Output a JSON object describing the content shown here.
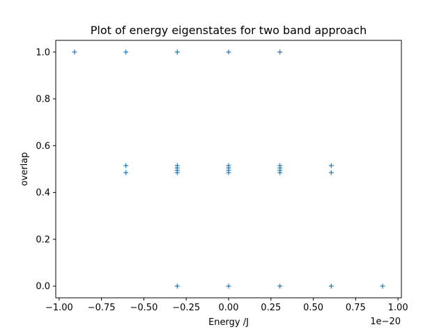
{
  "chart_data": {
    "type": "scatter",
    "title": "Plot of energy eigenstates for two band approach",
    "xlabel": "Energy /J",
    "ylabel": "overlap",
    "x_offset_label": "1e−20",
    "xlim": [
      -1.02,
      1.02
    ],
    "ylim": [
      -0.05,
      1.05
    ],
    "grid": false,
    "marker": "+",
    "color": "#1f77b4",
    "x_ticks": [
      {
        "value": -1.0,
        "label": "−1.00"
      },
      {
        "value": -0.75,
        "label": "−0.75"
      },
      {
        "value": -0.5,
        "label": "−0.50"
      },
      {
        "value": -0.25,
        "label": "−0.25"
      },
      {
        "value": 0.0,
        "label": "0.00"
      },
      {
        "value": 0.25,
        "label": "0.25"
      },
      {
        "value": 0.5,
        "label": "0.50"
      },
      {
        "value": 0.75,
        "label": "0.75"
      },
      {
        "value": 1.0,
        "label": "1.00"
      }
    ],
    "y_ticks": [
      {
        "value": 0.0,
        "label": "0.0"
      },
      {
        "value": 0.2,
        "label": "0.2"
      },
      {
        "value": 0.4,
        "label": "0.4"
      },
      {
        "value": 0.6,
        "label": "0.6"
      },
      {
        "value": 0.8,
        "label": "0.8"
      },
      {
        "value": 1.0,
        "label": "1.0"
      }
    ],
    "points": [
      {
        "x": -0.909,
        "y": 1.0
      },
      {
        "x": -0.606,
        "y": 1.0
      },
      {
        "x": -0.303,
        "y": 1.0
      },
      {
        "x": 0.0,
        "y": 1.0
      },
      {
        "x": 0.303,
        "y": 1.0
      },
      {
        "x": -0.606,
        "y": 0.515
      },
      {
        "x": -0.606,
        "y": 0.485
      },
      {
        "x": -0.303,
        "y": 0.515
      },
      {
        "x": -0.303,
        "y": 0.505
      },
      {
        "x": -0.303,
        "y": 0.495
      },
      {
        "x": -0.303,
        "y": 0.485
      },
      {
        "x": 0.0,
        "y": 0.515
      },
      {
        "x": 0.0,
        "y": 0.505
      },
      {
        "x": 0.0,
        "y": 0.495
      },
      {
        "x": 0.0,
        "y": 0.485
      },
      {
        "x": 0.303,
        "y": 0.515
      },
      {
        "x": 0.303,
        "y": 0.505
      },
      {
        "x": 0.303,
        "y": 0.495
      },
      {
        "x": 0.303,
        "y": 0.485
      },
      {
        "x": 0.606,
        "y": 0.515
      },
      {
        "x": 0.606,
        "y": 0.485
      },
      {
        "x": -0.303,
        "y": 0.0
      },
      {
        "x": 0.0,
        "y": 0.0
      },
      {
        "x": 0.303,
        "y": 0.0
      },
      {
        "x": 0.606,
        "y": 0.0
      },
      {
        "x": 0.909,
        "y": 0.0
      }
    ]
  }
}
